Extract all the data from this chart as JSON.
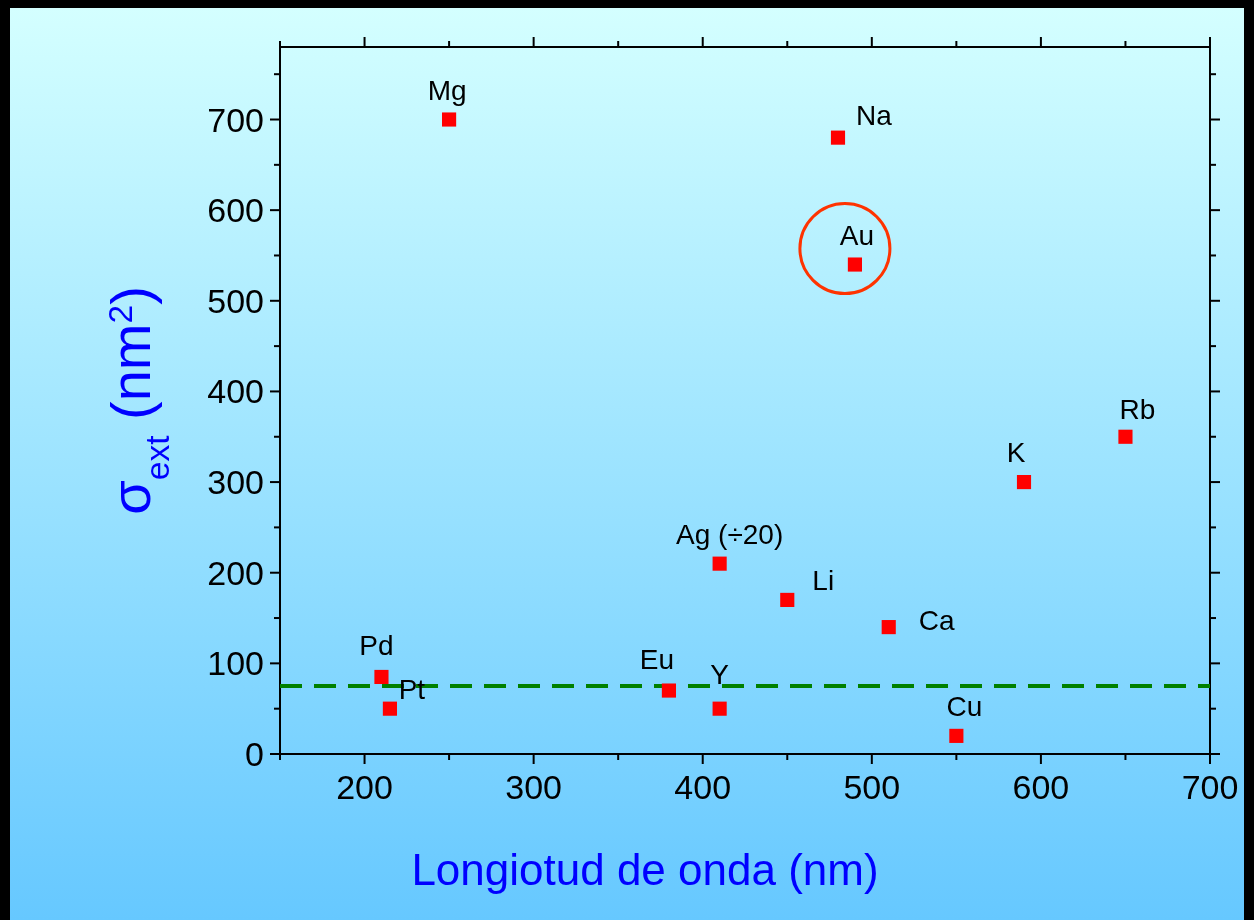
{
  "chart_data": {
    "type": "scatter",
    "xlabel": "Longiotud de onda (nm)",
    "ylabel": "σ$_{ext}$ (nm$^{2}$)",
    "x": [
      250,
      480,
      490,
      650,
      590,
      410,
      450,
      510,
      210,
      215,
      380,
      410,
      550
    ],
    "series": [
      {
        "color": "#ff0000",
        "values": [
          700,
          680,
          540,
          350,
          300,
          210,
          170,
          140,
          85,
          50,
          70,
          50,
          20
        ]
      }
    ],
    "marker": "square",
    "xlim": [
      150,
      700
    ],
    "xticks": [
      200,
      300,
      400,
      500,
      600,
      700
    ],
    "ylim": [
      0,
      780
    ],
    "yticks": [
      0,
      100,
      200,
      300,
      400,
      500,
      600,
      700
    ],
    "grid": false,
    "ref_lines": [
      {
        "axis": "y",
        "value": 75,
        "color": "#008000",
        "line_style": "dashed"
      }
    ],
    "annotations": [
      {
        "text": "Mg",
        "x": 250,
        "y": 700
      },
      {
        "text": "Na",
        "x": 480,
        "y": 680
      },
      {
        "text": "Au",
        "x": 490,
        "y": 540
      },
      {
        "text": "Rb",
        "x": 650,
        "y": 350
      },
      {
        "text": "K",
        "x": 590,
        "y": 300
      },
      {
        "text": "Ag (÷20)",
        "x": 410,
        "y": 210
      },
      {
        "text": "Li",
        "x": 450,
        "y": 170
      },
      {
        "text": "Ca",
        "x": 510,
        "y": 140
      },
      {
        "text": "Pd",
        "x": 210,
        "y": 85
      },
      {
        "text": "Pt",
        "x": 215,
        "y": 50
      },
      {
        "text": "Eu",
        "x": 380,
        "y": 70
      },
      {
        "text": "Y",
        "x": 410,
        "y": 50
      },
      {
        "text": "Cu",
        "x": 550,
        "y": 20
      }
    ]
  }
}
